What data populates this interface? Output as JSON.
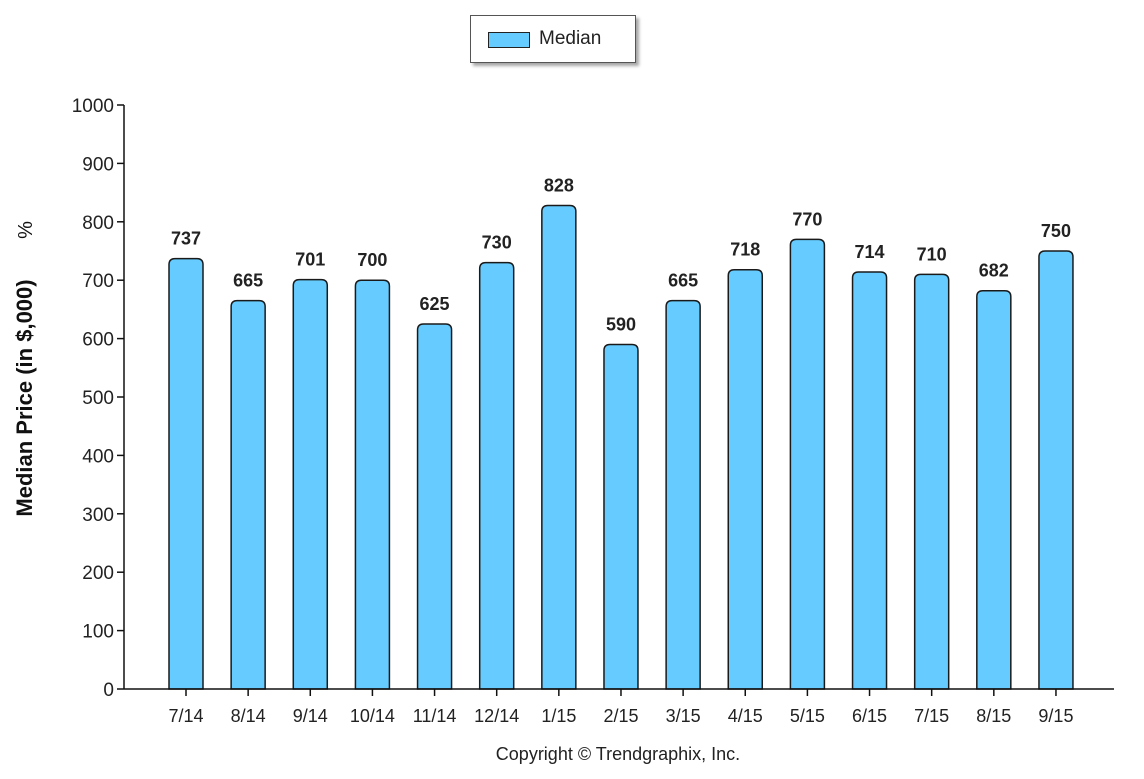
{
  "legend": {
    "label": "Median"
  },
  "copyright": "Copyright © Trendgraphix, Inc.",
  "chart_data": {
    "type": "bar",
    "ylabel": "Median Price (in $,000)",
    "ylabel_suffix": "%",
    "ylim": [
      0,
      1000
    ],
    "yticks": [
      0,
      100,
      200,
      300,
      400,
      500,
      600,
      700,
      800,
      900,
      1000
    ],
    "categories": [
      "7/14",
      "8/14",
      "9/14",
      "10/14",
      "11/14",
      "12/14",
      "1/15",
      "2/15",
      "3/15",
      "4/15",
      "5/15",
      "6/15",
      "7/15",
      "8/15",
      "9/15"
    ],
    "series": [
      {
        "name": "Median",
        "values": [
          737,
          665,
          701,
          700,
          625,
          730,
          828,
          590,
          665,
          718,
          770,
          714,
          710,
          682,
          750
        ]
      }
    ],
    "bar_color": "#66CCFF",
    "bar_edge_color": "#1a1a1a",
    "grid": false,
    "legend_position": "top-center"
  }
}
